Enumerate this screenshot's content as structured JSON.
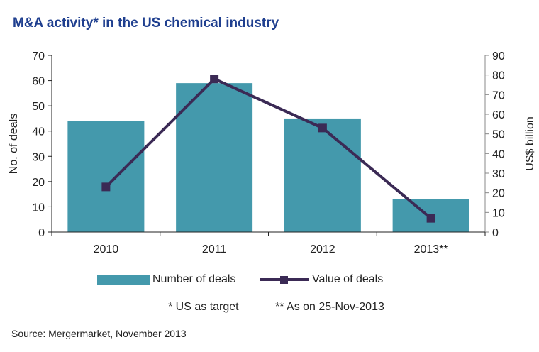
{
  "title": "M&A activity* in the US chemical industry",
  "chart_data": {
    "type": "bar",
    "title": "M&A activity* in the US chemical industry",
    "categories": [
      "2010",
      "2011",
      "2012",
      "2013**"
    ],
    "series": [
      {
        "name": "Number of deals",
        "type": "bar",
        "axis": "left",
        "values": [
          44,
          59,
          45,
          13
        ],
        "color": "#4499ac"
      },
      {
        "name": "Value of deals",
        "type": "line",
        "axis": "right",
        "values": [
          23,
          78,
          53,
          7
        ],
        "color": "#3b2a55"
      }
    ],
    "ylabel": "No. of deals",
    "ylabel_right": "US$ billion",
    "ylim": [
      0,
      70
    ],
    "ylim_right": [
      0,
      90
    ],
    "yticks": [
      "0",
      "10",
      "20",
      "30",
      "40",
      "50",
      "60",
      "70"
    ],
    "yticks_right": [
      "0",
      "10",
      "20",
      "30",
      "40",
      "50",
      "60",
      "70",
      "80",
      "90"
    ],
    "grid": false,
    "legend": "bottom"
  },
  "notes": {
    "target": "*  US as target",
    "date": "** As on 25-Nov-2013"
  },
  "source": "Source: Mergermarket, November 2013"
}
